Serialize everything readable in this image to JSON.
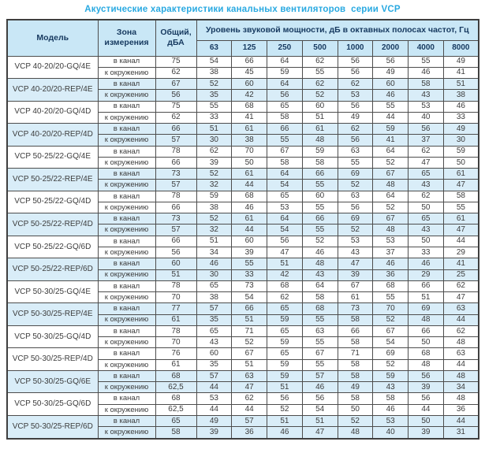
{
  "title": "Акустические характеристики канальных вентиляторов  серии VCP",
  "colors": {
    "title": "#29a9e1",
    "header_bg": "#c9e7f6",
    "row_shaded_bg": "#d9edf8",
    "border": "#4d4d4d",
    "header_text": "#16395f",
    "body_text": "#3c3c3c"
  },
  "table": {
    "headers": {
      "model": "Модель",
      "zone": "Зона измерения",
      "total": "Общий, дБА",
      "freq_group": "Уровень звуковой мощности, дБ в октавных полосах частот, Гц",
      "frequencies": [
        "63",
        "125",
        "250",
        "500",
        "1000",
        "2000",
        "4000",
        "8000"
      ]
    },
    "zone_labels": {
      "duct": "в канал",
      "ambient": "к окружению"
    },
    "models": [
      {
        "name": "VCP 40-20/20-GQ/4E",
        "shaded": false,
        "rows": [
          {
            "zone": "в канал",
            "total": "75",
            "values": [
              54,
              66,
              64,
              62,
              56,
              56,
              55,
              49
            ]
          },
          {
            "zone": "к окружению",
            "total": "62",
            "values": [
              38,
              45,
              59,
              55,
              56,
              49,
              46,
              41
            ]
          }
        ]
      },
      {
        "name": "VCP 40-20/20-REP/4E",
        "shaded": true,
        "rows": [
          {
            "zone": "в канал",
            "total": "67",
            "values": [
              52,
              60,
              64,
              62,
              62,
              60,
              58,
              51
            ]
          },
          {
            "zone": "к окружению",
            "total": "56",
            "values": [
              35,
              42,
              56,
              52,
              53,
              46,
              43,
              38
            ]
          }
        ]
      },
      {
        "name": "VCP 40-20/20-GQ/4D",
        "shaded": false,
        "rows": [
          {
            "zone": "в канал",
            "total": "75",
            "values": [
              55,
              68,
              65,
              60,
              56,
              55,
              53,
              46
            ]
          },
          {
            "zone": "к окружению",
            "total": "62",
            "values": [
              33,
              41,
              58,
              51,
              49,
              44,
              40,
              33
            ]
          }
        ]
      },
      {
        "name": "VCP 40-20/20-REP/4D",
        "shaded": true,
        "rows": [
          {
            "zone": "в канал",
            "total": "66",
            "values": [
              51,
              61,
              66,
              61,
              62,
              59,
              56,
              49
            ]
          },
          {
            "zone": "к окружению",
            "total": "57",
            "values": [
              30,
              38,
              55,
              48,
              56,
              41,
              37,
              30
            ]
          }
        ]
      },
      {
        "name": "VCP 50-25/22-GQ/4E",
        "shaded": false,
        "rows": [
          {
            "zone": "в канал",
            "total": "78",
            "values": [
              62,
              70,
              67,
              59,
              63,
              64,
              62,
              59
            ]
          },
          {
            "zone": "к окружению",
            "total": "66",
            "values": [
              39,
              50,
              58,
              58,
              55,
              52,
              47,
              50
            ]
          }
        ]
      },
      {
        "name": "VCP 50-25/22-REP/4E",
        "shaded": true,
        "rows": [
          {
            "zone": "в канал",
            "total": "73",
            "values": [
              52,
              61,
              64,
              66,
              69,
              67,
              65,
              61
            ]
          },
          {
            "zone": "к окружению",
            "total": "57",
            "values": [
              32,
              44,
              54,
              55,
              52,
              48,
              43,
              47
            ]
          }
        ]
      },
      {
        "name": "VCP 50-25/22-GQ/4D",
        "shaded": false,
        "rows": [
          {
            "zone": "в канал",
            "total": "78",
            "values": [
              59,
              68,
              65,
              60,
              63,
              64,
              62,
              58
            ]
          },
          {
            "zone": "к окружению",
            "total": "66",
            "values": [
              38,
              46,
              53,
              55,
              56,
              52,
              50,
              55
            ]
          }
        ]
      },
      {
        "name": "VCP 50-25/22-REP/4D",
        "shaded": true,
        "rows": [
          {
            "zone": "в канал",
            "total": "73",
            "values": [
              52,
              61,
              64,
              66,
              69,
              67,
              65,
              61
            ]
          },
          {
            "zone": "к окружению",
            "total": "57",
            "values": [
              32,
              44,
              54,
              55,
              52,
              48,
              43,
              47
            ]
          }
        ]
      },
      {
        "name": "VCP 50-25/22-GQ/6D",
        "shaded": false,
        "rows": [
          {
            "zone": "в канал",
            "total": "66",
            "values": [
              51,
              60,
              56,
              52,
              53,
              53,
              50,
              44
            ]
          },
          {
            "zone": "к окружению",
            "total": "56",
            "values": [
              34,
              39,
              47,
              46,
              43,
              37,
              33,
              29
            ]
          }
        ]
      },
      {
        "name": "VCP 50-25/22-REP/6D",
        "shaded": true,
        "rows": [
          {
            "zone": "в канал",
            "total": "60",
            "values": [
              46,
              55,
              51,
              48,
              47,
              46,
              46,
              41
            ]
          },
          {
            "zone": "к окружению",
            "total": "51",
            "values": [
              30,
              33,
              42,
              43,
              39,
              36,
              29,
              25
            ]
          }
        ]
      },
      {
        "name": "VCP 50-30/25-GQ/4E",
        "shaded": false,
        "rows": [
          {
            "zone": "в канал",
            "total": "78",
            "values": [
              65,
              73,
              68,
              64,
              67,
              68,
              66,
              62
            ]
          },
          {
            "zone": "к окружению",
            "total": "70",
            "values": [
              38,
              54,
              62,
              58,
              61,
              55,
              51,
              47
            ]
          }
        ]
      },
      {
        "name": "VCP 50-30/25-REP/4E",
        "shaded": true,
        "rows": [
          {
            "zone": "в канал",
            "total": "77",
            "values": [
              57,
              66,
              65,
              68,
              73,
              70,
              69,
              63
            ]
          },
          {
            "zone": "к окружению",
            "total": "61",
            "values": [
              35,
              51,
              59,
              55,
              58,
              52,
              48,
              44
            ]
          }
        ]
      },
      {
        "name": "VCP 50-30/25-GQ/4D",
        "shaded": false,
        "rows": [
          {
            "zone": "в канал",
            "total": "78",
            "values": [
              65,
              71,
              65,
              63,
              66,
              67,
              66,
              62
            ]
          },
          {
            "zone": "к окружению",
            "total": "70",
            "values": [
              43,
              52,
              59,
              55,
              58,
              54,
              50,
              48
            ]
          }
        ]
      },
      {
        "name": "VCP 50-30/25-REP/4D",
        "shaded": false,
        "rows": [
          {
            "zone": "в канал",
            "total": "76",
            "values": [
              60,
              67,
              65,
              67,
              71,
              69,
              68,
              63
            ]
          },
          {
            "zone": "к окружению",
            "total": "61",
            "values": [
              35,
              51,
              59,
              55,
              58,
              52,
              48,
              44
            ]
          }
        ]
      },
      {
        "name": "VCP 50-30/25-GQ/6E",
        "shaded": true,
        "rows": [
          {
            "zone": "в канал",
            "total": "68",
            "values": [
              57,
              63,
              59,
              57,
              58,
              59,
              56,
              48
            ]
          },
          {
            "zone": "к окружению",
            "total": "62,5",
            "values": [
              44,
              47,
              51,
              46,
              49,
              43,
              39,
              34
            ]
          }
        ]
      },
      {
        "name": "VCP 50-30/25-GQ/6D",
        "shaded": false,
        "rows": [
          {
            "zone": "в канал",
            "total": "68",
            "values": [
              53,
              62,
              56,
              56,
              58,
              58,
              56,
              48
            ]
          },
          {
            "zone": "к окружению",
            "total": "62,5",
            "values": [
              44,
              44,
              52,
              54,
              50,
              46,
              44,
              36
            ]
          }
        ]
      },
      {
        "name": "VCP 50-30/25-REP/6D",
        "shaded": true,
        "rows": [
          {
            "zone": "в канал",
            "total": "65",
            "values": [
              49,
              57,
              51,
              51,
              52,
              53,
              50,
              44
            ]
          },
          {
            "zone": "к окружению",
            "total": "58",
            "values": [
              39,
              36,
              46,
              47,
              48,
              40,
              39,
              31
            ]
          }
        ]
      }
    ]
  }
}
